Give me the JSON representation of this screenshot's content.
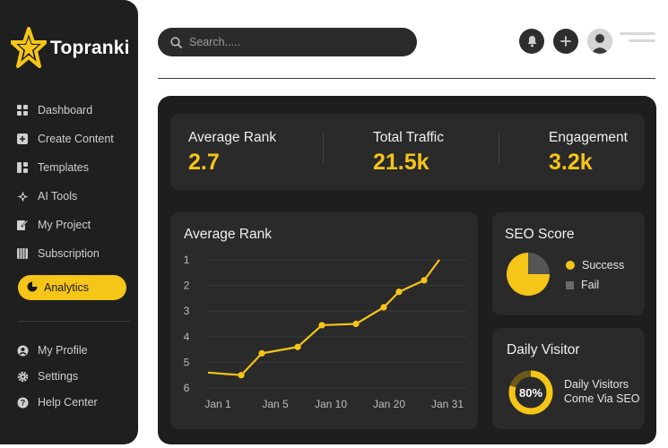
{
  "brand": {
    "name": "Topranki",
    "accent": "#f5c518"
  },
  "sidebar": {
    "items": [
      {
        "label": "Dashboard",
        "icon": "grid-icon"
      },
      {
        "label": "Create Content",
        "icon": "plus-square-icon"
      },
      {
        "label": "Templates",
        "icon": "layout-icon"
      },
      {
        "label": "AI Tools",
        "icon": "spark-icon"
      },
      {
        "label": "My Project",
        "icon": "edit-icon"
      },
      {
        "label": "Subscription",
        "icon": "list-icon"
      }
    ],
    "active": {
      "label": "Analytics",
      "icon": "pie-icon"
    },
    "bottom": [
      {
        "label": "My Profile",
        "icon": "user-icon"
      },
      {
        "label": "Settings",
        "icon": "gear-icon"
      },
      {
        "label": "Help Center",
        "icon": "help-icon"
      }
    ]
  },
  "header": {
    "search_placeholder": "Search....."
  },
  "stats": [
    {
      "label": "Average Rank",
      "value": "2.7"
    },
    {
      "label": "Total Traffic",
      "value": "21.5k"
    },
    {
      "label": "Engagement",
      "value": "3.2k"
    }
  ],
  "chart_data": {
    "type": "line",
    "title": "Average Rank",
    "x_ticks": [
      "Jan 1",
      "Jan 5",
      "Jan 10",
      "Jan 20",
      "Jan 31"
    ],
    "y_ticks": [
      "1",
      "2",
      "3",
      "4",
      "5",
      "6"
    ],
    "ylim": [
      6.2,
      1
    ],
    "y_reversed": true,
    "grid": true,
    "series": [
      {
        "values": [
          5.4,
          5.5,
          4.65,
          4.4,
          3.55,
          3.5,
          2.85,
          2.25,
          1.8,
          1
        ]
      }
    ]
  },
  "seo": {
    "title": "SEO Score",
    "success_label": "Success",
    "fail_label": "Fail",
    "success_pct": 75
  },
  "visitor": {
    "title": "Daily Visitor",
    "percent": "80%",
    "percent_value": 80,
    "line1": "Daily Visitors",
    "line2": "Come Via SEO"
  }
}
